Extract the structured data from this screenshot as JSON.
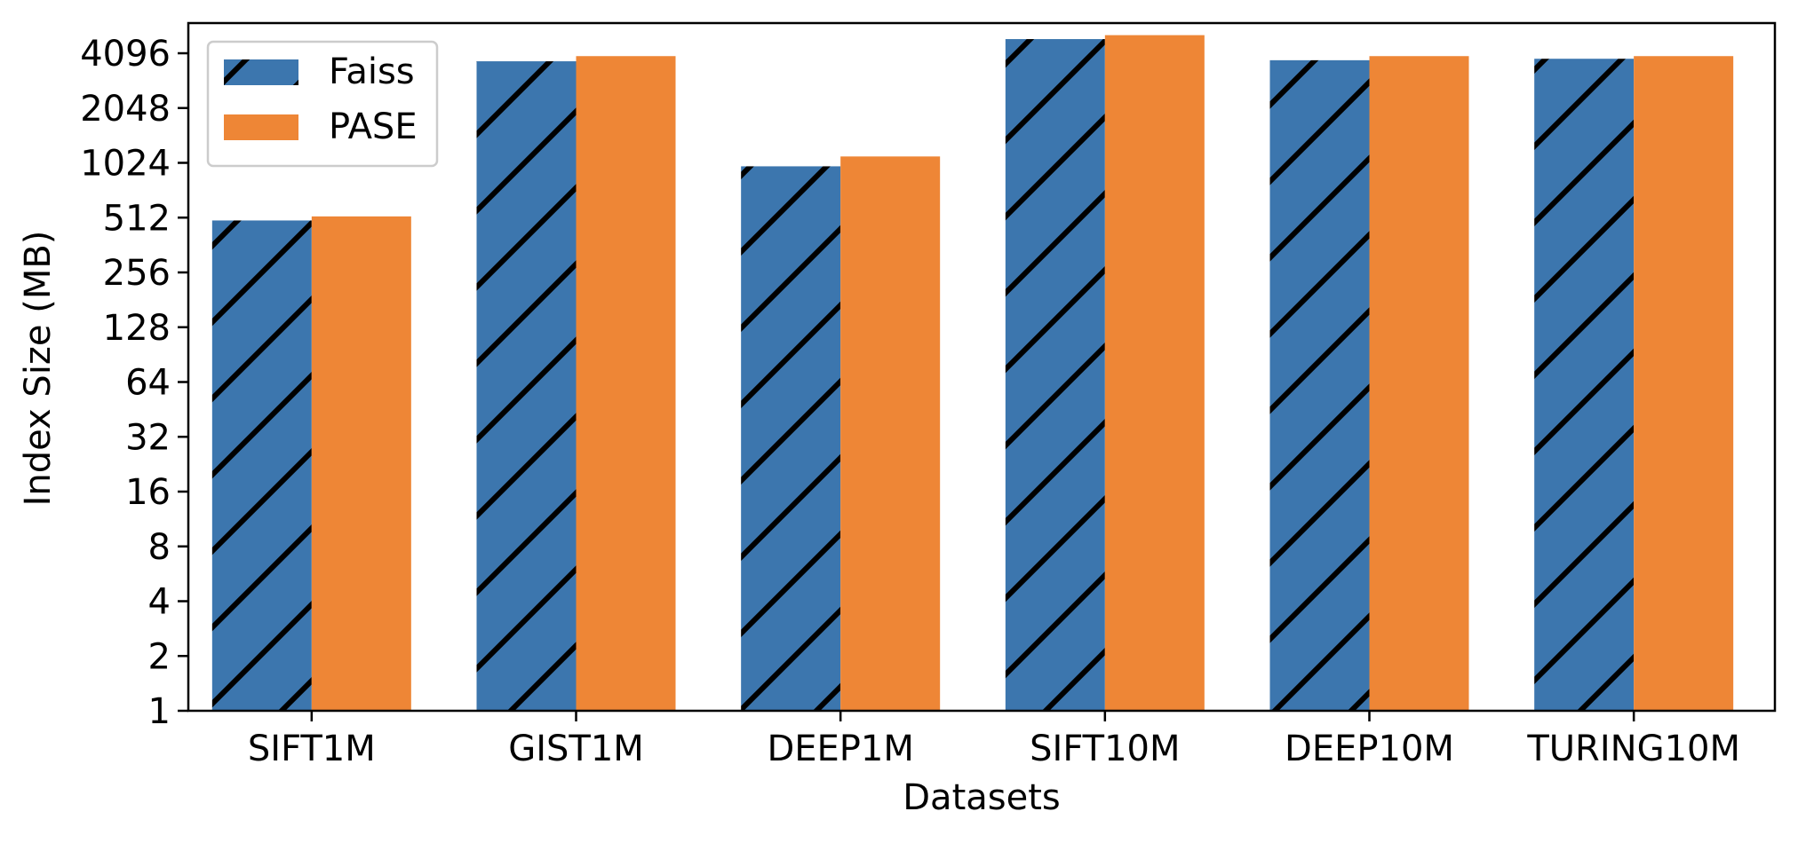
{
  "chart_data": {
    "type": "bar",
    "xlabel": "Datasets",
    "ylabel": "Index Size (MB)",
    "yscale": "log2",
    "ylim": [
      1,
      6000
    ],
    "yticks": [
      1,
      2,
      4,
      8,
      16,
      32,
      64,
      128,
      256,
      512,
      1024,
      2048,
      4096
    ],
    "ytick_labels": [
      "1",
      "2",
      "4",
      "8",
      "16",
      "32",
      "64",
      "128",
      "256",
      "512",
      "1024",
      "2048",
      "4096"
    ],
    "categories": [
      "SIFT1M",
      "GIST1M",
      "DEEP1M",
      "SIFT10M",
      "DEEP10M",
      "TURING10M"
    ],
    "series": [
      {
        "name": "Faiss",
        "color": "#3c76ae",
        "pattern": "diagonal-hatch",
        "values": [
          494,
          3700,
          980,
          4900,
          3750,
          3820
        ]
      },
      {
        "name": "PASE",
        "color": "#ee8636",
        "pattern": "solid",
        "values": [
          520,
          3950,
          1110,
          5150,
          3950,
          3950
        ]
      }
    ],
    "legend": {
      "position": "top-left"
    },
    "grid": false
  }
}
